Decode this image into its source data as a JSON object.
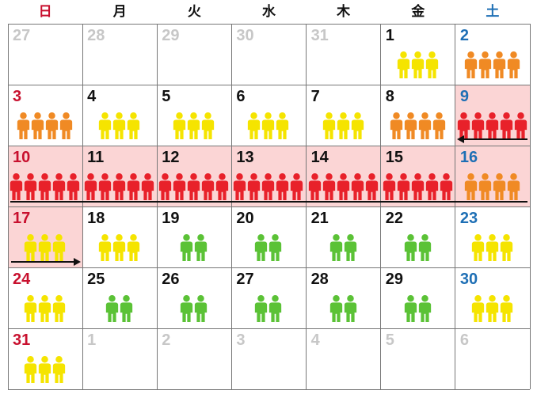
{
  "weekdays": [
    "日",
    "月",
    "火",
    "水",
    "木",
    "金",
    "土"
  ],
  "weekday_colors": [
    "#c8102e",
    "#111111",
    "#111111",
    "#111111",
    "#111111",
    "#111111",
    "#1e6fb5"
  ],
  "level_colors": {
    "high": "#e8212a",
    "medium_high": "#f08a24",
    "medium": "#f5e400",
    "low": "#5bc236"
  },
  "weeks": [
    [
      {
        "day": "27",
        "muted": true,
        "people": 0,
        "level": "none"
      },
      {
        "day": "28",
        "muted": true,
        "people": 0,
        "level": "none"
      },
      {
        "day": "29",
        "muted": true,
        "people": 0,
        "level": "none"
      },
      {
        "day": "30",
        "muted": true,
        "people": 0,
        "level": "none"
      },
      {
        "day": "31",
        "muted": true,
        "people": 0,
        "level": "none"
      },
      {
        "day": "1",
        "people": 3,
        "level": "medium"
      },
      {
        "day": "2",
        "people": 4,
        "level": "medium_high"
      }
    ],
    [
      {
        "day": "3",
        "people": 4,
        "level": "medium_high"
      },
      {
        "day": "4",
        "people": 3,
        "level": "medium"
      },
      {
        "day": "5",
        "people": 3,
        "level": "medium"
      },
      {
        "day": "6",
        "people": 3,
        "level": "medium"
      },
      {
        "day": "7",
        "people": 3,
        "level": "medium"
      },
      {
        "day": "8",
        "people": 4,
        "level": "medium_high"
      },
      {
        "day": "9",
        "people": 5,
        "level": "high",
        "highlight": true
      }
    ],
    [
      {
        "day": "10",
        "people": 5,
        "level": "high",
        "highlight": true
      },
      {
        "day": "11",
        "people": 5,
        "level": "high",
        "highlight": true
      },
      {
        "day": "12",
        "people": 5,
        "level": "high",
        "highlight": true
      },
      {
        "day": "13",
        "people": 5,
        "level": "high",
        "highlight": true
      },
      {
        "day": "14",
        "people": 5,
        "level": "high",
        "highlight": true
      },
      {
        "day": "15",
        "people": 5,
        "level": "high",
        "highlight": true
      },
      {
        "day": "16",
        "people": 4,
        "level": "medium_high",
        "highlight": true
      }
    ],
    [
      {
        "day": "17",
        "people": 3,
        "level": "medium",
        "highlight": true
      },
      {
        "day": "18",
        "people": 3,
        "level": "medium"
      },
      {
        "day": "19",
        "people": 2,
        "level": "low"
      },
      {
        "day": "20",
        "people": 2,
        "level": "low"
      },
      {
        "day": "21",
        "people": 2,
        "level": "low"
      },
      {
        "day": "22",
        "people": 2,
        "level": "low"
      },
      {
        "day": "23",
        "people": 3,
        "level": "medium"
      }
    ],
    [
      {
        "day": "24",
        "people": 3,
        "level": "medium"
      },
      {
        "day": "25",
        "people": 2,
        "level": "low"
      },
      {
        "day": "26",
        "people": 2,
        "level": "low"
      },
      {
        "day": "27",
        "people": 2,
        "level": "low"
      },
      {
        "day": "28",
        "people": 2,
        "level": "low"
      },
      {
        "day": "29",
        "people": 2,
        "level": "low"
      },
      {
        "day": "30",
        "people": 3,
        "level": "medium"
      }
    ],
    [
      {
        "day": "31",
        "people": 3,
        "level": "medium"
      },
      {
        "day": "1",
        "muted": true,
        "people": 0,
        "level": "none"
      },
      {
        "day": "2",
        "muted": true,
        "people": 0,
        "level": "none"
      },
      {
        "day": "3",
        "muted": true,
        "people": 0,
        "level": "none"
      },
      {
        "day": "4",
        "muted": true,
        "people": 0,
        "level": "none"
      },
      {
        "day": "5",
        "muted": true,
        "people": 0,
        "level": "none"
      },
      {
        "day": "6",
        "muted": true,
        "people": 0,
        "level": "none"
      }
    ]
  ]
}
